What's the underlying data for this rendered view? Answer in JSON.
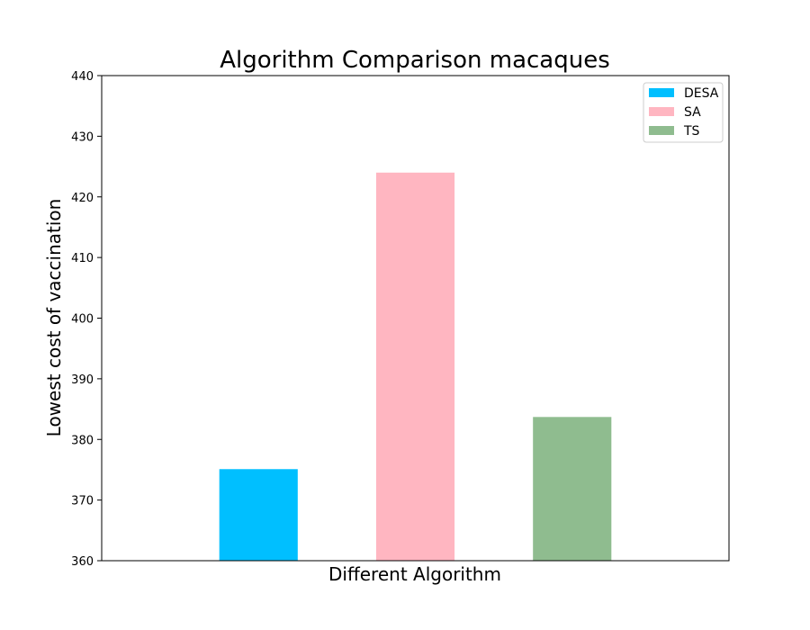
{
  "chart_data": {
    "type": "bar",
    "title": "Algorithm Comparison macaques",
    "xlabel": "Different Algorithm",
    "ylabel": "Lowest cost of vaccination",
    "ylim": [
      360,
      440
    ],
    "yticks": [
      360,
      370,
      380,
      390,
      400,
      410,
      420,
      430,
      440
    ],
    "legend_position": "top-right",
    "grid": false,
    "series": [
      {
        "name": "DESA",
        "value": 375.1,
        "color": "#00bfff"
      },
      {
        "name": "SA",
        "value": 424.0,
        "color": "#ffb6c1"
      },
      {
        "name": "TS",
        "value": 383.7,
        "color": "#8fbc8f"
      }
    ]
  }
}
